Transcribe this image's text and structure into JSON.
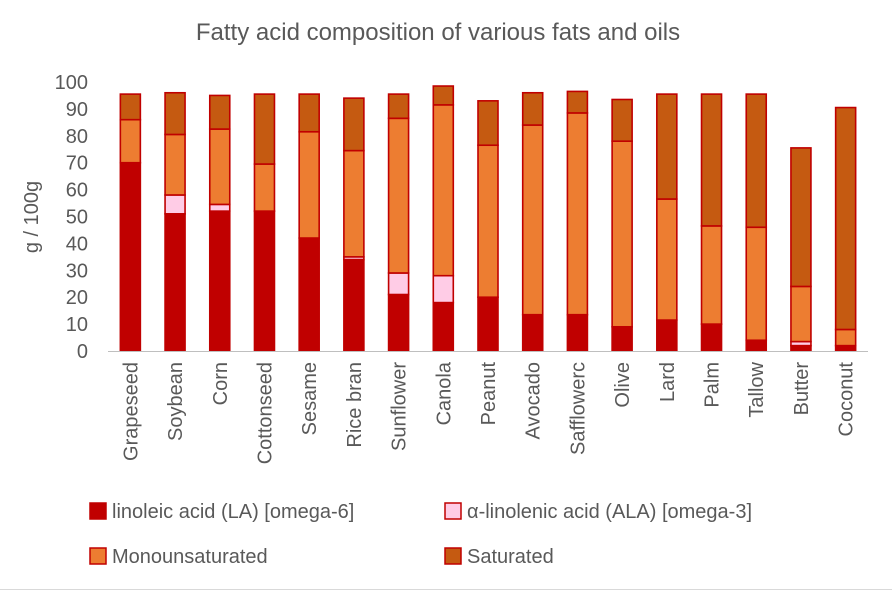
{
  "chart_data": {
    "type": "bar",
    "stacked": true,
    "title": "Fatty acid composition of various fats and oils",
    "xlabel": "",
    "ylabel": "g / 100g",
    "ylim": [
      0,
      100
    ],
    "yticks": [
      0,
      10,
      20,
      30,
      40,
      50,
      60,
      70,
      80,
      90,
      100
    ],
    "grid": false,
    "legend_position": "bottom",
    "categories": [
      "Grapeseed",
      "Soybean",
      "Corn",
      "Cottonseed",
      "Sesame",
      "Rice bran",
      "Sunflower",
      "Canola",
      "Peanut",
      "Avocado",
      "Safflowerc",
      "Olive",
      "Lard",
      "Palm",
      "Tallow",
      "Butter",
      "Coconut"
    ],
    "series": [
      {
        "name": "linoleic acid (LA) [omega-6]",
        "color": "#c00000",
        "values": [
          70,
          51,
          52,
          52,
          42,
          34,
          21,
          18,
          20,
          13.5,
          13.5,
          9,
          11.5,
          10,
          4,
          2,
          2
        ]
      },
      {
        "name": "α-linolenic acid (ALA) [omega-3]",
        "color": "#ffcce6",
        "values": [
          0,
          7,
          2.5,
          0,
          0,
          1,
          8,
          10,
          0,
          0,
          0,
          0,
          0,
          0,
          0,
          1.5,
          0
        ]
      },
      {
        "name": "Monounsaturated",
        "color": "#ed7d31",
        "values": [
          16,
          22.5,
          28,
          17.5,
          39.5,
          39.5,
          57.5,
          63.5,
          56.5,
          70.5,
          75,
          69,
          45,
          36.5,
          42,
          20.5,
          6
        ]
      },
      {
        "name": "Saturated",
        "color": "#c55a11",
        "values": [
          9.5,
          15.5,
          12.5,
          26,
          14,
          19.5,
          9,
          7,
          16.5,
          12,
          8,
          15.5,
          39,
          49,
          49.5,
          51.5,
          82.5
        ]
      }
    ]
  }
}
